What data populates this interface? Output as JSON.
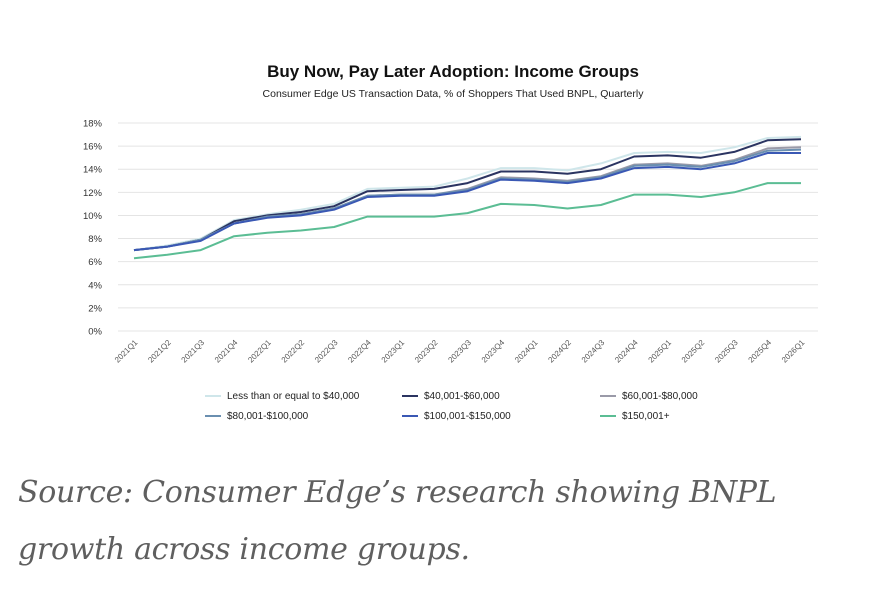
{
  "caption": "Source: Consumer Edge’s research showing BNPL growth across income groups.",
  "chart_data": {
    "type": "line",
    "title": "Buy Now, Pay Later Adoption: Income Groups",
    "subtitle": "Consumer Edge US Transaction Data, % of Shoppers That Used BNPL, Quarterly",
    "xlabel": "",
    "ylabel": "",
    "ylim": [
      0,
      18
    ],
    "yticks": [
      "0%",
      "2%",
      "4%",
      "6%",
      "8%",
      "10%",
      "12%",
      "14%",
      "16%",
      "18%"
    ],
    "grid": true,
    "legend_position": "bottom",
    "categories": [
      "2021Q1",
      "2021Q2",
      "2021Q3",
      "2021Q4",
      "2022Q1",
      "2022Q2",
      "2022Q3",
      "2022Q4",
      "2023Q1",
      "2023Q2",
      "2023Q3",
      "2023Q4",
      "2024Q1",
      "2024Q2",
      "2024Q3",
      "2024Q4",
      "2025Q1",
      "2025Q2",
      "2025Q3",
      "2025Q4",
      "2026Q1"
    ],
    "series": [
      {
        "name": "Less than or equal to $40,000",
        "color": "#cfe6ea",
        "values": [
          7.0,
          7.4,
          8.0,
          9.6,
          10.1,
          10.5,
          11.0,
          12.3,
          12.4,
          12.5,
          13.2,
          14.1,
          14.1,
          13.9,
          14.5,
          15.4,
          15.5,
          15.4,
          15.9,
          16.7,
          16.8
        ]
      },
      {
        "name": "$40,001-$60,000",
        "color": "#2b3461",
        "values": [
          7.0,
          7.3,
          7.9,
          9.5,
          10.0,
          10.3,
          10.8,
          12.1,
          12.2,
          12.3,
          12.8,
          13.8,
          13.8,
          13.6,
          14.0,
          15.1,
          15.2,
          15.0,
          15.5,
          16.5,
          16.6
        ]
      },
      {
        "name": "$60,001-$80,000",
        "color": "#9a9aa8",
        "values": [
          7.0,
          7.3,
          7.9,
          9.3,
          9.9,
          10.1,
          10.6,
          11.7,
          11.8,
          11.8,
          12.3,
          13.3,
          13.2,
          13.0,
          13.4,
          14.4,
          14.5,
          14.3,
          14.8,
          15.8,
          15.9
        ]
      },
      {
        "name": "$80,001-$100,000",
        "color": "#6a8fb0",
        "values": [
          7.0,
          7.3,
          7.9,
          9.3,
          9.9,
          10.1,
          10.6,
          11.7,
          11.8,
          11.8,
          12.2,
          13.2,
          13.1,
          12.9,
          13.3,
          14.3,
          14.4,
          14.2,
          14.7,
          15.6,
          15.7
        ]
      },
      {
        "name": "$100,001-$150,000",
        "color": "#3a58b4",
        "values": [
          7.0,
          7.3,
          7.8,
          9.3,
          9.8,
          10.0,
          10.5,
          11.6,
          11.7,
          11.7,
          12.1,
          13.1,
          13.0,
          12.8,
          13.2,
          14.1,
          14.2,
          14.0,
          14.5,
          15.4,
          15.4
        ]
      },
      {
        "name": "$150,001+",
        "color": "#5bbd94",
        "values": [
          6.3,
          6.6,
          7.0,
          8.2,
          8.5,
          8.7,
          9.0,
          9.9,
          9.9,
          9.9,
          10.2,
          11.0,
          10.9,
          10.6,
          10.9,
          11.8,
          11.8,
          11.6,
          12.0,
          12.8,
          12.8
        ]
      }
    ]
  }
}
